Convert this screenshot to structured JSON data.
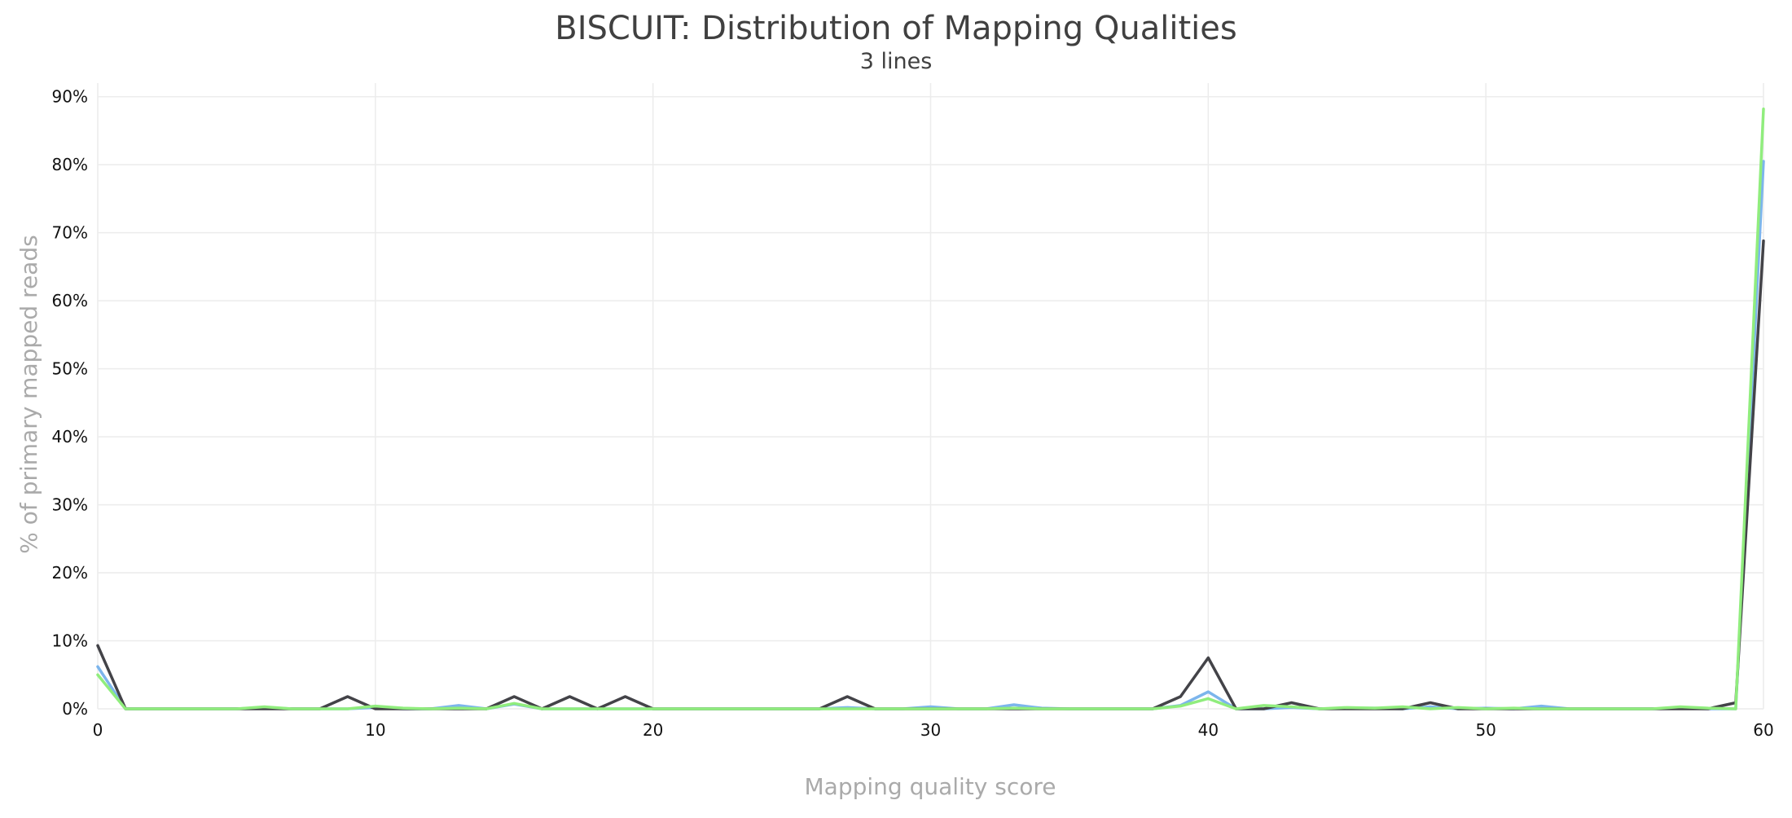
{
  "chart_data": {
    "type": "line",
    "title": "BISCUIT: Distribution of Mapping Qualities",
    "subtitle": "3 lines",
    "xlabel": "Mapping quality score",
    "ylabel": "% of primary mapped reads",
    "xlim": [
      0,
      60
    ],
    "ylim": [
      0,
      92
    ],
    "x_ticks": [
      0,
      10,
      20,
      30,
      40,
      50,
      60
    ],
    "y_ticks": [
      0,
      10,
      20,
      30,
      40,
      50,
      60,
      70,
      80,
      90
    ],
    "y_tick_suffix": "%",
    "grid": true,
    "legend": "none",
    "x": [
      0,
      1,
      2,
      3,
      4,
      5,
      6,
      7,
      8,
      9,
      10,
      11,
      12,
      13,
      14,
      15,
      16,
      17,
      18,
      19,
      20,
      21,
      22,
      23,
      24,
      25,
      26,
      27,
      28,
      29,
      30,
      31,
      32,
      33,
      34,
      35,
      36,
      37,
      38,
      39,
      40,
      41,
      42,
      43,
      44,
      45,
      46,
      47,
      48,
      49,
      50,
      51,
      52,
      53,
      54,
      55,
      56,
      57,
      58,
      59,
      60
    ],
    "series": [
      {
        "color": "#7cb5ec",
        "values": [
          6.2,
          0,
          0,
          0,
          0,
          0,
          0.2,
          0,
          0,
          0,
          0.2,
          0,
          0,
          0.5,
          0,
          0.7,
          0,
          0,
          0,
          0,
          0,
          0,
          0,
          0,
          0,
          0,
          0,
          0.2,
          0,
          0,
          0.3,
          0,
          0,
          0.6,
          0.1,
          0,
          0,
          0,
          0,
          0.5,
          2.5,
          0,
          0,
          0.2,
          0,
          0.1,
          0.1,
          0,
          0.3,
          0,
          0.1,
          0,
          0.4,
          0,
          0,
          0,
          0,
          0.1,
          0,
          0,
          80.5
        ]
      },
      {
        "color": "#434348",
        "values": [
          9.3,
          0,
          0,
          0,
          0,
          0,
          0,
          0,
          0,
          1.8,
          0,
          0,
          0,
          0,
          0,
          1.8,
          0,
          1.8,
          0,
          1.8,
          0,
          0,
          0,
          0,
          0,
          0,
          0,
          1.8,
          0,
          0,
          0,
          0,
          0,
          0,
          0,
          0,
          0,
          0,
          0,
          1.8,
          7.5,
          0,
          0,
          0.9,
          0,
          0,
          0,
          0,
          0.9,
          0,
          0,
          0,
          0,
          0,
          0,
          0,
          0,
          0,
          0,
          0.9,
          68.8
        ]
      },
      {
        "color": "#90ed7d",
        "values": [
          5.0,
          0,
          0,
          0,
          0,
          0,
          0.3,
          0,
          0,
          0,
          0.4,
          0.1,
          0,
          0.1,
          0,
          0.8,
          0,
          0,
          0,
          0,
          0,
          0,
          0,
          0,
          0,
          0,
          0,
          0,
          0,
          0,
          0,
          0,
          0,
          0.1,
          0,
          0,
          0,
          0,
          0,
          0.4,
          1.5,
          0,
          0.5,
          0.3,
          0,
          0.2,
          0.1,
          0.3,
          0,
          0.2,
          0,
          0.1,
          0,
          0,
          0,
          0,
          0,
          0.3,
          0.1,
          0,
          88.2
        ]
      }
    ]
  }
}
